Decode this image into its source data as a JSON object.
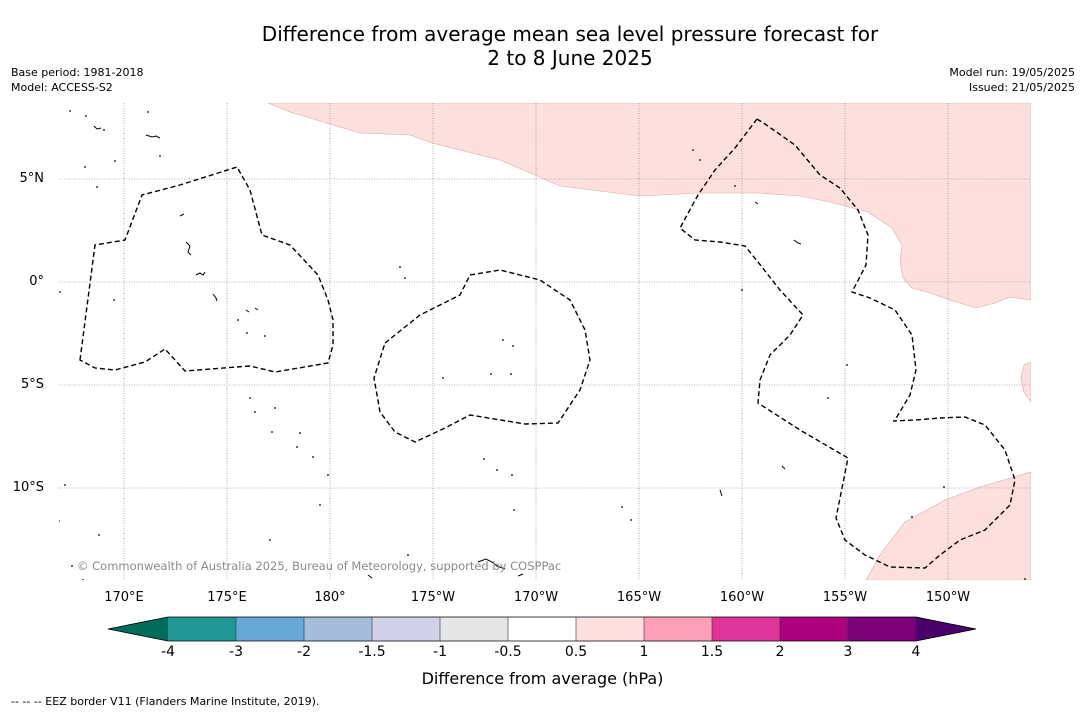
{
  "title": {
    "line1": "Difference from average mean sea level pressure forecast for",
    "line2": "2 to 8 June 2025"
  },
  "meta_left": {
    "base_period": "Base period: 1981-2018",
    "model": "Model: ACCESS-S2"
  },
  "meta_right": {
    "model_run": "Model run: 19/05/2025",
    "issued": "Issued: 21/05/2025"
  },
  "copyright": "© Commonwealth of Australia 2025, Bureau of Meteorology, supported by COSPPac",
  "map": {
    "lon_labels": [
      "170°E",
      "175°E",
      "180°",
      "175°W",
      "170°W",
      "165°W",
      "160°W",
      "155°W",
      "150°W"
    ],
    "lat_labels": [
      "5°N",
      "0°",
      "5°S",
      "10°S"
    ],
    "anomaly_fill_color": "#fde0dd"
  },
  "legend": {
    "title": "Difference from average (hPa)",
    "ticks": [
      "-4",
      "-3",
      "-2",
      "-1.5",
      "-1",
      "-0.5",
      "0.5",
      "1",
      "1.5",
      "2",
      "3",
      "4"
    ],
    "colors": [
      "#1f9595",
      "#66a9d6",
      "#a6bcdd",
      "#d0d1e6",
      "#e6e6e6",
      "#ffffff",
      "#fde0dd",
      "#fa9fb5",
      "#dd3497",
      "#ae017e",
      "#7a0177"
    ],
    "under_color": "#016c59",
    "over_color": "#49006a"
  },
  "footnote": "--  --  -- EEZ border V11 (Flanders Marine Institute, 2019)."
}
